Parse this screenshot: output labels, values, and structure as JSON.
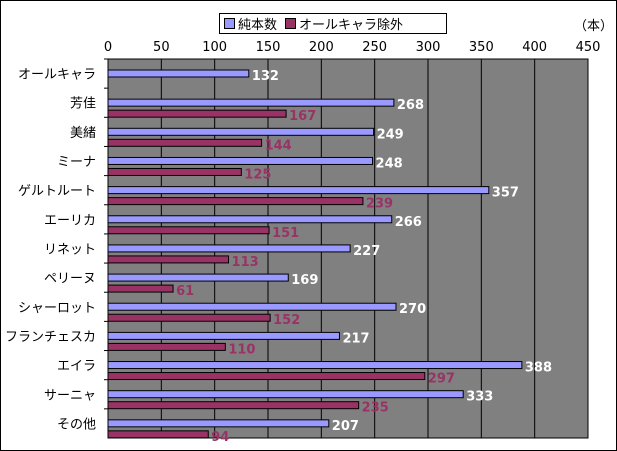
{
  "chart_data": {
    "type": "bar",
    "orientation": "horizontal",
    "unit_label": "（本）",
    "categories": [
      "オールキャラ",
      "芳佳",
      "美緒",
      "ミーナ",
      "ゲルトルート",
      "エーリカ",
      "リネット",
      "ペリーヌ",
      "シャーロット",
      "フランチェスカ",
      "エイラ",
      "サーニャ",
      "その他"
    ],
    "series": [
      {
        "name": "純本数",
        "color": "#9999ff",
        "label_color": "#ffffff",
        "values": [
          132,
          268,
          249,
          248,
          357,
          266,
          227,
          169,
          270,
          217,
          388,
          333,
          207
        ]
      },
      {
        "name": "オールキャラ除外",
        "color": "#993366",
        "label_color": "#993366",
        "values": [
          null,
          167,
          144,
          125,
          239,
          151,
          113,
          61,
          152,
          110,
          297,
          235,
          94
        ]
      }
    ],
    "xlim": [
      0,
      450
    ],
    "xticks": [
      0,
      50,
      100,
      150,
      200,
      250,
      300,
      350,
      400,
      450
    ],
    "plot_background": "#808080",
    "gridlines": "vertical",
    "legend_position": "top"
  }
}
